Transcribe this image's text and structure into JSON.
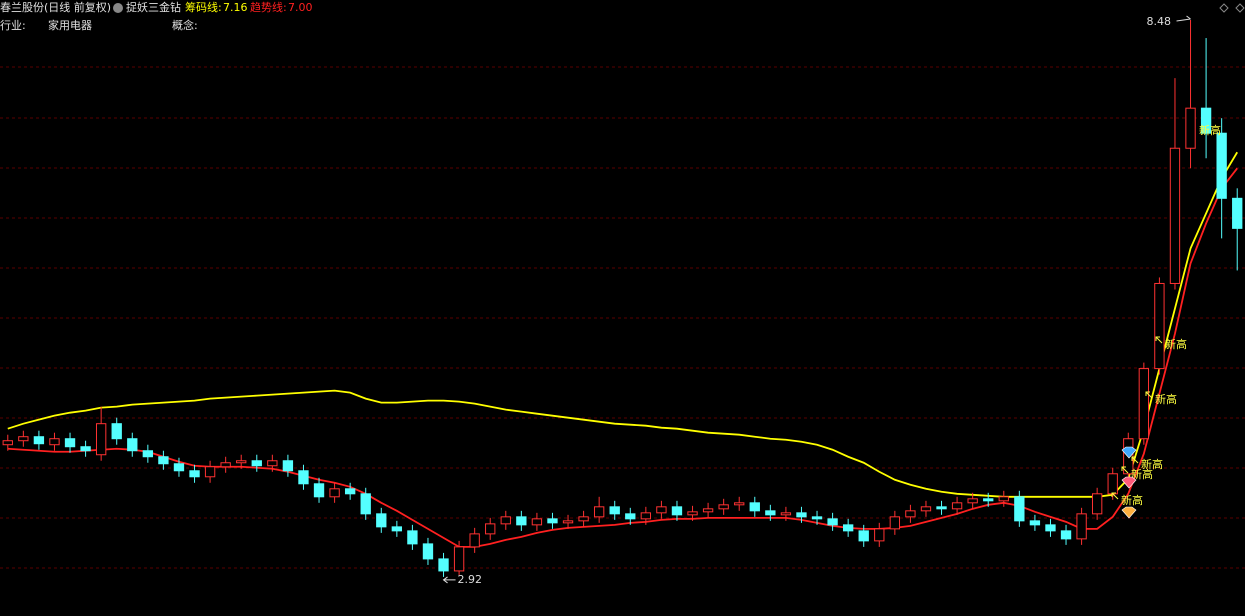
{
  "header": {
    "title": "春兰股份(日线 前复权)",
    "indicator_name": "捉妖三金钻",
    "indicators": [
      {
        "name": "筹码线:",
        "value": 7.16,
        "value_label": "7.16",
        "color": "#ffff00"
      },
      {
        "name": "趋势线:",
        "value": 7,
        "value_label": "7.00",
        "color": "#ff2020"
      }
    ],
    "industry_label": "行业:",
    "industry": "家用电器",
    "concept_label": "概念:"
  },
  "chart_data": {
    "type": "candlestick",
    "xlim": [
      -0.5,
      79.5
    ],
    "ylim": [
      2.53,
      8.68
    ],
    "up_color": "#ff3232",
    "down_color": "#54ffff",
    "open": [
      4.24,
      4.28,
      4.32,
      4.24,
      4.3,
      4.22,
      4.14,
      4.45,
      4.3,
      4.18,
      4.12,
      4.05,
      3.98,
      3.92,
      4.02,
      4.06,
      4.08,
      4.03,
      4.08,
      3.98,
      3.85,
      3.72,
      3.8,
      3.75,
      3.55,
      3.42,
      3.38,
      3.25,
      3.1,
      2.98,
      3.22,
      3.35,
      3.45,
      3.52,
      3.44,
      3.5,
      3.46,
      3.48,
      3.52,
      3.62,
      3.55,
      3.5,
      3.56,
      3.62,
      3.54,
      3.57,
      3.6,
      3.64,
      3.66,
      3.58,
      3.54,
      3.56,
      3.52,
      3.5,
      3.44,
      3.38,
      3.28,
      3.4,
      3.52,
      3.58,
      3.62,
      3.6,
      3.66,
      3.7,
      3.68,
      3.72,
      3.48,
      3.44,
      3.38,
      3.3,
      3.55,
      3.75,
      3.95,
      4.3,
      5.0,
      5.85,
      7.2,
      7.6,
      7.35,
      6.7
    ],
    "high": [
      4.34,
      4.38,
      4.38,
      4.36,
      4.36,
      4.28,
      4.62,
      4.51,
      4.36,
      4.24,
      4.18,
      4.11,
      4.04,
      4.08,
      4.12,
      4.14,
      4.14,
      4.14,
      4.14,
      4.04,
      3.91,
      3.86,
      3.86,
      3.81,
      3.61,
      3.48,
      3.44,
      3.31,
      3.16,
      3.28,
      3.41,
      3.51,
      3.58,
      3.58,
      3.56,
      3.56,
      3.54,
      3.58,
      3.72,
      3.68,
      3.61,
      3.62,
      3.68,
      3.68,
      3.63,
      3.66,
      3.7,
      3.72,
      3.72,
      3.64,
      3.62,
      3.62,
      3.58,
      3.56,
      3.5,
      3.44,
      3.46,
      3.58,
      3.64,
      3.68,
      3.68,
      3.72,
      3.76,
      3.76,
      3.78,
      3.78,
      3.54,
      3.5,
      3.44,
      3.61,
      3.81,
      4.01,
      4.36,
      5.06,
      5.91,
      7.9,
      8.48,
      8.3,
      7.5,
      6.8
    ],
    "low": [
      4.18,
      4.22,
      4.19,
      4.18,
      4.16,
      4.12,
      4.08,
      4.24,
      4.12,
      4.06,
      3.99,
      3.92,
      3.86,
      3.86,
      3.96,
      4.0,
      3.97,
      3.97,
      3.92,
      3.79,
      3.66,
      3.66,
      3.69,
      3.49,
      3.36,
      3.32,
      3.19,
      3.04,
      2.92,
      2.94,
      3.16,
      3.29,
      3.39,
      3.38,
      3.38,
      3.4,
      3.4,
      3.42,
      3.46,
      3.49,
      3.44,
      3.44,
      3.5,
      3.48,
      3.48,
      3.51,
      3.54,
      3.58,
      3.52,
      3.48,
      3.48,
      3.46,
      3.44,
      3.38,
      3.32,
      3.22,
      3.22,
      3.34,
      3.46,
      3.52,
      3.54,
      3.54,
      3.6,
      3.62,
      3.62,
      3.42,
      3.38,
      3.32,
      3.24,
      3.24,
      3.49,
      3.69,
      3.89,
      4.24,
      4.94,
      5.79,
      7.0,
      7.1,
      6.3,
      5.98
    ],
    "close": [
      4.28,
      4.32,
      4.25,
      4.3,
      4.22,
      4.18,
      4.45,
      4.3,
      4.18,
      4.12,
      4.05,
      3.98,
      3.92,
      4.02,
      4.06,
      4.08,
      4.03,
      4.08,
      3.98,
      3.85,
      3.72,
      3.8,
      3.75,
      3.55,
      3.42,
      3.38,
      3.25,
      3.1,
      2.98,
      3.22,
      3.35,
      3.45,
      3.52,
      3.44,
      3.5,
      3.46,
      3.48,
      3.52,
      3.62,
      3.55,
      3.5,
      3.56,
      3.62,
      3.54,
      3.57,
      3.6,
      3.64,
      3.66,
      3.58,
      3.54,
      3.56,
      3.52,
      3.5,
      3.44,
      3.38,
      3.28,
      3.4,
      3.52,
      3.58,
      3.62,
      3.6,
      3.66,
      3.7,
      3.68,
      3.72,
      3.48,
      3.44,
      3.38,
      3.3,
      3.55,
      3.75,
      3.95,
      4.3,
      5.0,
      5.85,
      7.2,
      7.6,
      7.35,
      6.7,
      6.4
    ],
    "series": [
      {
        "name": "筹码线",
        "color": "#ffff00",
        "values": [
          4.4,
          4.45,
          4.49,
          4.53,
          4.56,
          4.58,
          4.61,
          4.62,
          4.64,
          4.65,
          4.66,
          4.67,
          4.68,
          4.7,
          4.71,
          4.72,
          4.73,
          4.74,
          4.75,
          4.76,
          4.77,
          4.78,
          4.76,
          4.7,
          4.66,
          4.66,
          4.67,
          4.68,
          4.68,
          4.67,
          4.65,
          4.62,
          4.59,
          4.57,
          4.55,
          4.53,
          4.51,
          4.49,
          4.47,
          4.45,
          4.44,
          4.43,
          4.41,
          4.4,
          4.38,
          4.36,
          4.35,
          4.34,
          4.32,
          4.3,
          4.29,
          4.27,
          4.24,
          4.19,
          4.12,
          4.06,
          3.97,
          3.89,
          3.84,
          3.8,
          3.77,
          3.75,
          3.74,
          3.73,
          3.72,
          3.72,
          3.72,
          3.72,
          3.72,
          3.72,
          3.72,
          3.74,
          3.9,
          4.4,
          5.0,
          5.6,
          6.2,
          6.55,
          6.9,
          7.16
        ]
      },
      {
        "name": "趋势线",
        "color": "#ff2020",
        "values": [
          4.2,
          4.19,
          4.18,
          4.17,
          4.17,
          4.18,
          4.19,
          4.2,
          4.19,
          4.17,
          4.12,
          4.07,
          4.03,
          4.02,
          4.02,
          4.02,
          4.01,
          4.0,
          3.97,
          3.93,
          3.89,
          3.86,
          3.82,
          3.75,
          3.66,
          3.58,
          3.49,
          3.4,
          3.31,
          3.22,
          3.22,
          3.25,
          3.29,
          3.32,
          3.36,
          3.39,
          3.41,
          3.42,
          3.43,
          3.44,
          3.46,
          3.47,
          3.49,
          3.5,
          3.5,
          3.51,
          3.51,
          3.51,
          3.51,
          3.51,
          3.51,
          3.49,
          3.46,
          3.43,
          3.41,
          3.4,
          3.4,
          3.41,
          3.43,
          3.47,
          3.51,
          3.55,
          3.6,
          3.64,
          3.66,
          3.63,
          3.57,
          3.52,
          3.47,
          3.4,
          3.4,
          3.52,
          3.75,
          4.15,
          4.75,
          5.35,
          6.05,
          6.45,
          6.8,
          7.0
        ]
      }
    ],
    "annotations": [
      "新高",
      "新高",
      "新高",
      "新高",
      "新高"
    ]
  }
}
